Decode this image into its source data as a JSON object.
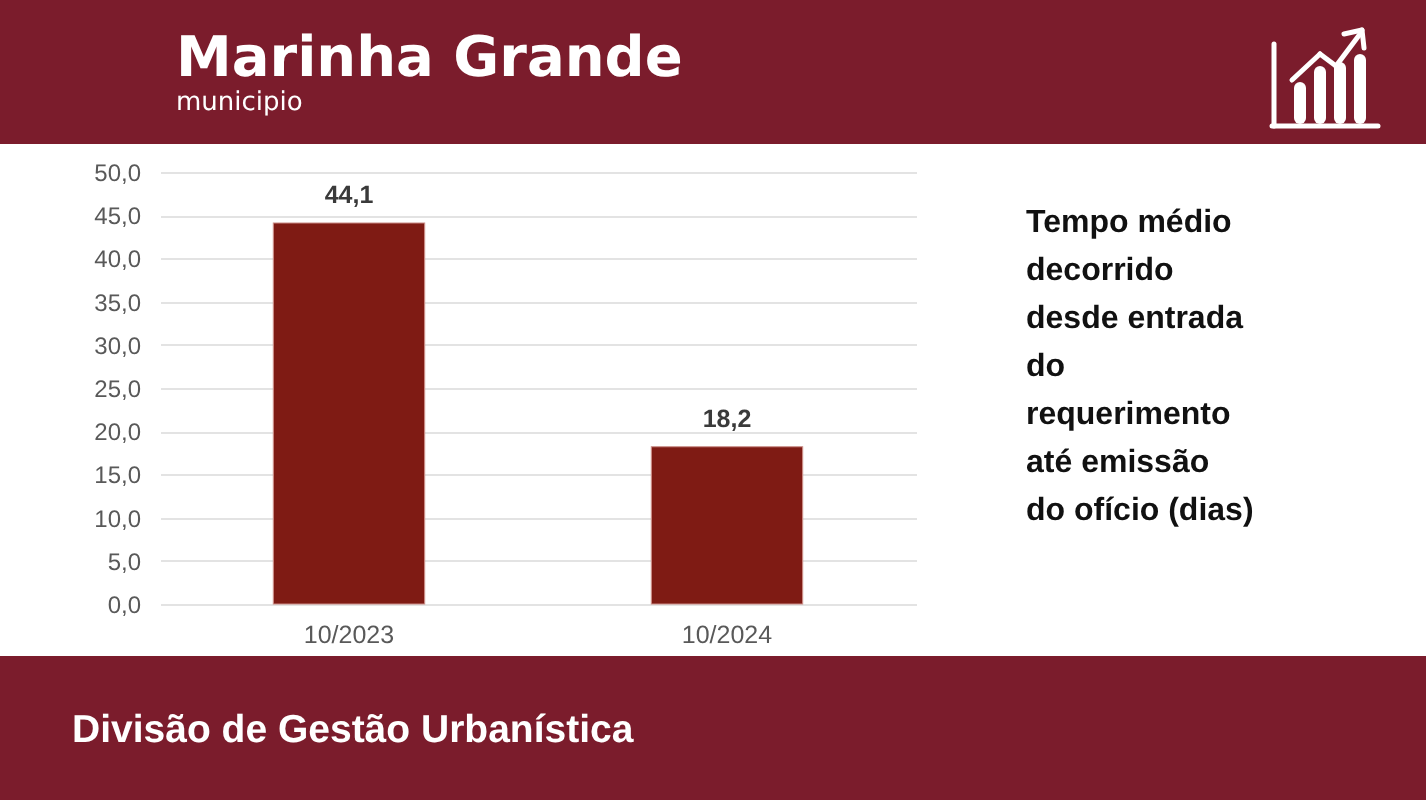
{
  "chart_data": {
    "type": "bar",
    "title": "Marinha Grande",
    "subtitle": "municipio",
    "categories": [
      "10/2023",
      "10/2024"
    ],
    "values": [
      44.1,
      18.2
    ],
    "color": "#7f1b14",
    "value_labels": [
      "44,1",
      "18,2"
    ],
    "ylim": [
      0,
      50
    ],
    "yticks": [
      {
        "value": 0,
        "label": "0,0"
      },
      {
        "value": 5,
        "label": "5,0"
      },
      {
        "value": 10,
        "label": "10,0"
      },
      {
        "value": 15,
        "label": "15,0"
      },
      {
        "value": 20,
        "label": "20,0"
      },
      {
        "value": 25,
        "label": "25,0"
      },
      {
        "value": 30,
        "label": "30,0"
      },
      {
        "value": 35,
        "label": "35,0"
      },
      {
        "value": 40,
        "label": "40,0"
      },
      {
        "value": 45,
        "label": "45,0"
      },
      {
        "value": 50,
        "label": "50,0"
      }
    ],
    "grid": "y",
    "annotations": [
      "Tempo médio\ndecorrido\ndesde entrada\ndo\nrequerimento\naté emissão\ndo ofício (dias)",
      "Divisão de Gestão Urbanística"
    ]
  }
}
